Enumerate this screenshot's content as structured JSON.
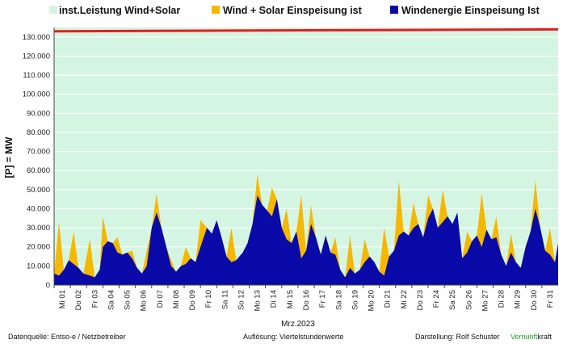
{
  "chart_data": {
    "type": "area",
    "ylabel": "[P] =  MW",
    "xlabel": "Mrz.2023",
    "ylim": [
      0,
      135000
    ],
    "yticks": [
      "0",
      "10.000",
      "20.000",
      "30.000",
      "40.000",
      "50.000",
      "60.000",
      "70.000",
      "80.000",
      "90.000",
      "100.000",
      "110.000",
      "120.000",
      "130.000"
    ],
    "x_tick_labels": [
      "Mi 01",
      "Do 02",
      "Fr 03",
      "Sa 04",
      "So 05",
      "Mo 06",
      "Di 07",
      "Mi 08",
      "Do 09",
      "Fr 10",
      "Sa 11",
      "So 12",
      "Mo 13",
      "Di 14",
      "Mi 15",
      "Do 16",
      "Fr 17",
      "Sa 18",
      "So 19",
      "Mo 20",
      "Di 21",
      "Mi 22",
      "Do 23",
      "Fr 24",
      "Sa 25",
      "So 26",
      "Mo 27",
      "Di 28",
      "Mi 29",
      "Do 30",
      "Fr 31"
    ],
    "grid": true,
    "legend_position": "top",
    "legend": [
      {
        "label": "inst.Leistung Wind+Solar",
        "color": "#d5f5e3"
      },
      {
        "label": "Wind + Solar Einspeisung ist",
        "color": "#f5b800"
      },
      {
        "label": "Windenergie Einspeisung Ist",
        "color": "#0a0aa8"
      }
    ],
    "series": [
      {
        "name": "inst.Leistung Wind+Solar",
        "color": "#e02020",
        "x": [
          1,
          32
        ],
        "values": [
          133000,
          134000
        ]
      },
      {
        "name": "Windenergie Einspeisung Ist",
        "color": "#0a0aa8",
        "x": [
          1.0,
          1.3,
          1.6,
          1.9,
          2.2,
          2.5,
          2.8,
          3.2,
          3.5,
          3.8,
          4.0,
          4.3,
          4.6,
          4.9,
          5.2,
          5.5,
          5.8,
          6.1,
          6.4,
          6.7,
          7.0,
          7.3,
          7.6,
          7.9,
          8.2,
          8.5,
          8.8,
          9.1,
          9.4,
          9.7,
          10.0,
          10.4,
          10.7,
          11.0,
          11.3,
          11.6,
          11.9,
          12.2,
          12.6,
          12.9,
          13.2,
          13.5,
          13.8,
          14.1,
          14.4,
          14.7,
          15.0,
          15.3,
          15.6,
          15.9,
          16.2,
          16.5,
          16.8,
          17.1,
          17.4,
          17.7,
          18.0,
          18.3,
          18.6,
          18.9,
          19.2,
          19.5,
          19.8,
          20.1,
          20.4,
          20.7,
          21.0,
          21.3,
          21.6,
          21.9,
          22.2,
          22.5,
          22.8,
          23.1,
          23.4,
          23.7,
          24.0,
          24.3,
          24.6,
          24.9,
          25.2,
          25.5,
          25.8,
          26.1,
          26.4,
          26.7,
          27.0,
          27.3,
          27.6,
          27.9,
          28.2,
          28.5,
          28.8,
          29.1,
          29.4,
          29.7,
          30.0,
          30.3,
          30.6,
          30.9,
          31.2,
          31.5,
          31.8,
          32.0
        ],
        "values": [
          6000,
          5000,
          8000,
          13000,
          11000,
          9000,
          6000,
          5000,
          4000,
          8000,
          20000,
          23000,
          22000,
          17000,
          16000,
          17000,
          14000,
          9000,
          6000,
          10000,
          30000,
          38000,
          30000,
          20000,
          10000,
          7000,
          10000,
          11000,
          14000,
          12000,
          20000,
          30000,
          27000,
          34000,
          25000,
          15000,
          12000,
          13000,
          17000,
          22000,
          32000,
          47000,
          42000,
          39000,
          36000,
          45000,
          30000,
          24000,
          22000,
          28000,
          14000,
          18000,
          32000,
          25000,
          16000,
          26000,
          17000,
          16000,
          8000,
          4000,
          9000,
          6000,
          8000,
          12000,
          15000,
          12000,
          7000,
          5000,
          15000,
          18000,
          26000,
          28000,
          26000,
          30000,
          32000,
          25000,
          35000,
          40000,
          30000,
          33000,
          36000,
          32000,
          38000,
          14000,
          17000,
          23000,
          26000,
          20000,
          29000,
          24000,
          25000,
          16000,
          10000,
          17000,
          12000,
          9000,
          20000,
          28000,
          40000,
          30000,
          18000,
          16000,
          12000,
          22000
        ]
      },
      {
        "name": "Wind + Solar Einspeisung ist",
        "color": "#f5b800",
        "x": [
          1.0,
          1.3,
          1.6,
          1.9,
          2.2,
          2.5,
          2.8,
          3.2,
          3.5,
          3.8,
          4.0,
          4.3,
          4.6,
          4.9,
          5.2,
          5.5,
          5.8,
          6.1,
          6.4,
          6.7,
          7.0,
          7.3,
          7.6,
          7.9,
          8.2,
          8.5,
          8.8,
          9.1,
          9.4,
          9.7,
          10.0,
          10.4,
          10.7,
          11.0,
          11.3,
          11.6,
          11.9,
          12.2,
          12.6,
          12.9,
          13.2,
          13.5,
          13.8,
          14.1,
          14.4,
          14.7,
          15.0,
          15.3,
          15.6,
          15.9,
          16.2,
          16.5,
          16.8,
          17.1,
          17.4,
          17.7,
          18.0,
          18.3,
          18.6,
          18.9,
          19.2,
          19.5,
          19.8,
          20.1,
          20.4,
          20.7,
          21.0,
          21.3,
          21.6,
          21.9,
          22.2,
          22.5,
          22.8,
          23.1,
          23.4,
          23.7,
          24.0,
          24.3,
          24.6,
          24.9,
          25.2,
          25.5,
          25.8,
          26.1,
          26.4,
          26.7,
          27.0,
          27.3,
          27.6,
          27.9,
          28.2,
          28.5,
          28.8,
          29.1,
          29.4,
          29.7,
          30.0,
          30.3,
          30.6,
          30.9,
          31.2,
          31.5,
          31.8,
          32.0
        ],
        "values": [
          6000,
          33000,
          8000,
          13000,
          28000,
          9000,
          6000,
          24000,
          4000,
          8000,
          36000,
          23000,
          22000,
          25000,
          16000,
          17000,
          18000,
          9000,
          6000,
          18000,
          30000,
          48000,
          30000,
          20000,
          13000,
          7000,
          10000,
          20000,
          14000,
          12000,
          34000,
          30000,
          27000,
          34000,
          25000,
          15000,
          30000,
          13000,
          17000,
          22000,
          32000,
          58000,
          42000,
          39000,
          51000,
          45000,
          30000,
          40000,
          22000,
          28000,
          47000,
          18000,
          42000,
          25000,
          16000,
          26000,
          17000,
          25000,
          8000,
          4000,
          26000,
          6000,
          8000,
          24000,
          15000,
          12000,
          7000,
          30000,
          15000,
          18000,
          55000,
          28000,
          26000,
          43000,
          32000,
          25000,
          47000,
          40000,
          30000,
          50000,
          36000,
          32000,
          38000,
          14000,
          28000,
          23000,
          26000,
          48000,
          29000,
          24000,
          36000,
          16000,
          10000,
          27000,
          12000,
          9000,
          20000,
          28000,
          55000,
          30000,
          18000,
          30000,
          12000,
          22000
        ]
      }
    ]
  },
  "footer": {
    "source": "Datenquelle:  Entso-e  / Netzbetreiber",
    "resolution": "Auflösung: Viertelstundenwerte",
    "author": "Darstellung:  Rolf Schuster",
    "brand_part1": "Vernunft",
    "brand_part2": "kraft"
  }
}
